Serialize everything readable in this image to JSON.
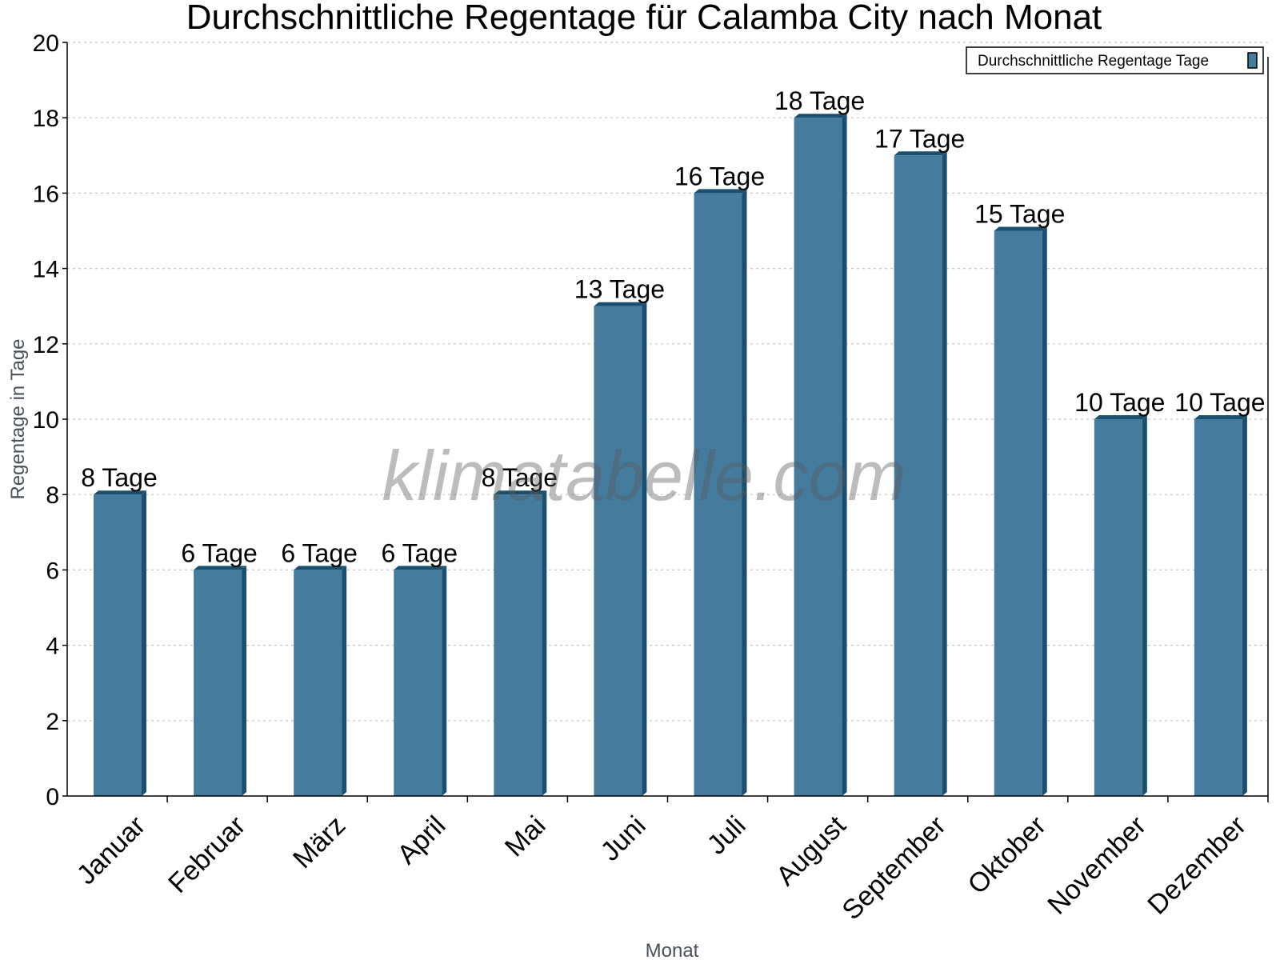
{
  "chart_data": {
    "type": "bar",
    "title": "Durchschnittliche Regentage für Calamba City nach Monat",
    "xlabel": "Monat",
    "ylabel": "Regentage in Tage",
    "categories": [
      "Januar",
      "Februar",
      "März",
      "April",
      "Mai",
      "Juni",
      "Juli",
      "August",
      "September",
      "Oktober",
      "November",
      "Dezember"
    ],
    "series": [
      {
        "name": "Durchschnittliche Regentage Tage",
        "values": [
          8,
          6,
          6,
          6,
          8,
          13,
          16,
          18,
          17,
          15,
          10,
          10
        ],
        "color": "#457b9d"
      }
    ],
    "data_labels": [
      "8 Tage",
      "6 Tage",
      "6 Tage",
      "6 Tage",
      "8 Tage",
      "13 Tage",
      "16 Tage",
      "18 Tage",
      "17 Tage",
      "15 Tage",
      "10 Tage",
      "10 Tage"
    ],
    "ylim": [
      0,
      20
    ],
    "yticks": [
      0,
      2,
      4,
      6,
      8,
      10,
      12,
      14,
      16,
      18,
      20
    ],
    "grid": true,
    "legend_position": "top-right",
    "watermark": "klimatabelle.com"
  },
  "colors": {
    "bar_front": "#457b9d",
    "bar_side": "#1b4f6f",
    "grid": "#c8c8c8"
  }
}
